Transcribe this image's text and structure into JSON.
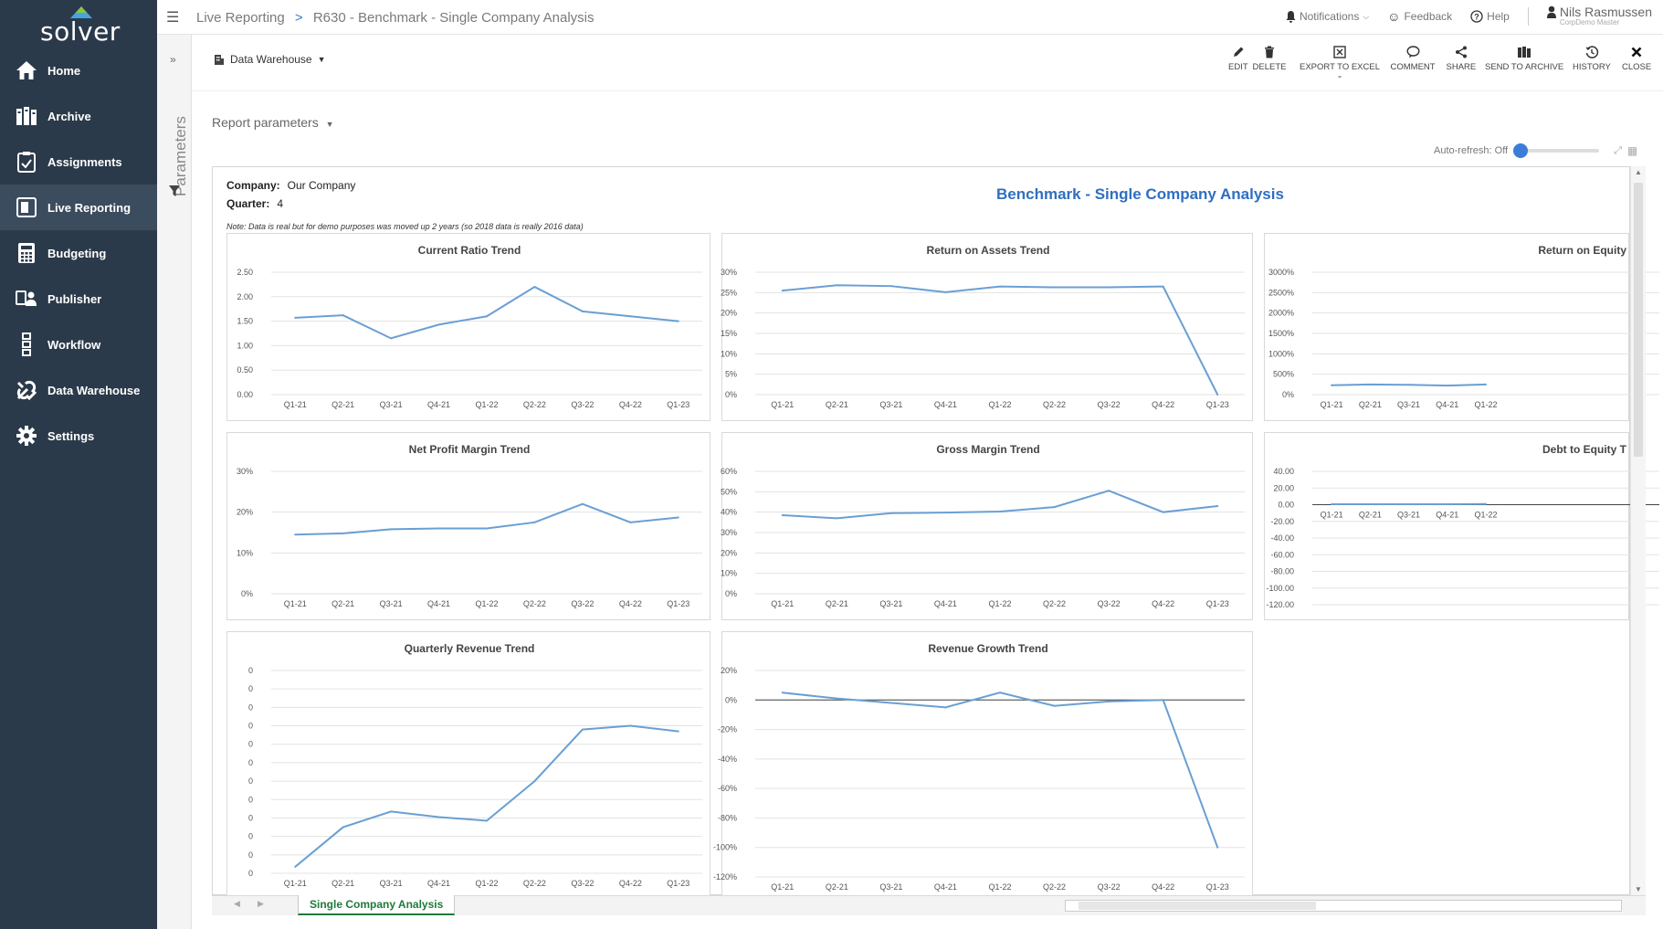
{
  "app": {
    "logo_text": "solver"
  },
  "sidebar": {
    "items": [
      {
        "label": "Home",
        "icon": "home-icon"
      },
      {
        "label": "Archive",
        "icon": "archive-icon"
      },
      {
        "label": "Assignments",
        "icon": "assignments-icon"
      },
      {
        "label": "Live Reporting",
        "icon": "live-reporting-icon",
        "active": true
      },
      {
        "label": "Budgeting",
        "icon": "calculator-icon"
      },
      {
        "label": "Publisher",
        "icon": "publisher-icon"
      },
      {
        "label": "Workflow",
        "icon": "workflow-icon"
      },
      {
        "label": "Data Warehouse",
        "icon": "tools-icon"
      },
      {
        "label": "Settings",
        "icon": "gear-icon"
      }
    ]
  },
  "header": {
    "breadcrumb_root": "Live Reporting",
    "breadcrumb_sep": ">",
    "breadcrumb_page": "R630 - Benchmark - Single Company Analysis",
    "notifications": "Notifications",
    "feedback": "Feedback",
    "help": "Help",
    "user_name": "Nils Rasmussen",
    "user_sub": "CorpDemo Master"
  },
  "params_panel": {
    "label": "Parameters"
  },
  "toolbar": {
    "source": "Data Warehouse",
    "buttons": [
      {
        "label": "EDIT",
        "icon": "pencil-icon"
      },
      {
        "label": "DELETE",
        "icon": "trash-icon"
      },
      {
        "label": "EXPORT TO EXCEL",
        "icon": "excel-icon"
      },
      {
        "label": "COMMENT",
        "icon": "comment-icon"
      },
      {
        "label": "SHARE",
        "icon": "share-icon"
      },
      {
        "label": "SEND TO ARCHIVE",
        "icon": "archive-send-icon"
      },
      {
        "label": "HISTORY",
        "icon": "history-icon"
      },
      {
        "label": "CLOSE",
        "icon": "close-icon"
      }
    ]
  },
  "report_params": {
    "label": "Report parameters"
  },
  "autorefresh": {
    "label": "Auto-refresh: Off",
    "state": "off"
  },
  "report": {
    "company_label": "Company:",
    "company_value": "Our Company",
    "quarter_label": "Quarter:",
    "quarter_value": "4",
    "note": "Note: Data is real but for demo purposes was moved up 2 years (so 2018 data is really 2016 data)",
    "title": "Benchmark - Single Company Analysis"
  },
  "chart_data": [
    {
      "type": "line",
      "title": "Current Ratio Trend",
      "categories": [
        "Q1-21",
        "Q2-21",
        "Q3-21",
        "Q4-21",
        "Q1-22",
        "Q2-22",
        "Q3-22",
        "Q4-22",
        "Q1-23"
      ],
      "values": [
        1.57,
        1.62,
        1.15,
        1.43,
        1.6,
        2.2,
        1.7,
        1.6,
        1.5
      ],
      "ylim": [
        0,
        2.5
      ],
      "yticks": [
        "0.00",
        "0.50",
        "1.00",
        "1.50",
        "2.00",
        "2.50"
      ],
      "color": "#6a9fd4"
    },
    {
      "type": "line",
      "title": "Return on Assets Trend",
      "categories": [
        "Q1-21",
        "Q2-21",
        "Q3-21",
        "Q4-21",
        "Q1-22",
        "Q2-22",
        "Q3-22",
        "Q4-22",
        "Q1-23"
      ],
      "values": [
        25.5,
        26.8,
        26.6,
        25.1,
        26.5,
        26.3,
        26.3,
        26.5,
        0
      ],
      "ylim": [
        0,
        30
      ],
      "yticks": [
        "0%",
        "5%",
        "10%",
        "15%",
        "20%",
        "25%",
        "30%"
      ],
      "color": "#6a9fd4"
    },
    {
      "type": "line",
      "title": "Return on Equity",
      "categories": [
        "Q1-21",
        "Q2-21",
        "Q3-21",
        "Q4-21",
        "Q1-22"
      ],
      "values": [
        230,
        250,
        240,
        220,
        250
      ],
      "ylim": [
        0,
        3000
      ],
      "yticks": [
        "0%",
        "500%",
        "1000%",
        "1500%",
        "2000%",
        "2500%",
        "3000%"
      ],
      "color": "#6a9fd4"
    },
    {
      "type": "line",
      "title": "Net Profit Margin Trend",
      "categories": [
        "Q1-21",
        "Q2-21",
        "Q3-21",
        "Q4-21",
        "Q1-22",
        "Q2-22",
        "Q3-22",
        "Q4-22",
        "Q1-23"
      ],
      "values": [
        14.5,
        14.8,
        15.8,
        16.0,
        16.0,
        17.5,
        22.0,
        17.5,
        18.7
      ],
      "ylim": [
        0,
        30
      ],
      "yticks": [
        "0%",
        "10%",
        "20%",
        "30%"
      ],
      "color": "#6a9fd4"
    },
    {
      "type": "line",
      "title": "Gross Margin Trend",
      "categories": [
        "Q1-21",
        "Q2-21",
        "Q3-21",
        "Q4-21",
        "Q1-22",
        "Q2-22",
        "Q3-22",
        "Q4-22",
        "Q1-23"
      ],
      "values": [
        38.5,
        37.0,
        39.5,
        39.8,
        40.3,
        42.5,
        50.5,
        40.0,
        43.0
      ],
      "ylim": [
        0,
        60
      ],
      "yticks": [
        "0%",
        "10%",
        "20%",
        "30%",
        "40%",
        "50%",
        "60%"
      ],
      "color": "#6a9fd4"
    },
    {
      "type": "line",
      "title": "Debt to Equity T",
      "categories": [
        "Q1-21",
        "Q2-21",
        "Q3-21",
        "Q4-21",
        "Q1-22"
      ],
      "values": [
        0.5,
        0.5,
        0.5,
        0.5,
        0.8
      ],
      "ylim": [
        -120,
        40
      ],
      "yticks": [
        "-120.00",
        "-100.00",
        "-80.00",
        "-60.00",
        "-40.00",
        "-20.00",
        "0.00",
        "20.00",
        "40.00"
      ],
      "color": "#6a9fd4"
    },
    {
      "type": "line",
      "title": "Quarterly Revenue Trend",
      "categories": [
        "Q1-21",
        "Q2-21",
        "Q3-21",
        "Q4-21",
        "Q1-22",
        "Q2-22",
        "Q3-22",
        "Q4-22",
        "Q1-23"
      ],
      "values": [
        0.35,
        2.5,
        3.35,
        3.05,
        2.85,
        5.0,
        7.8,
        8.0,
        7.7
      ],
      "ylim": [
        0,
        11
      ],
      "yticks": [
        "0",
        "0",
        "0",
        "0",
        "0",
        "0",
        "0",
        "0",
        "0",
        "0",
        "0",
        "0"
      ],
      "color": "#6a9fd4"
    },
    {
      "type": "line",
      "title": "Revenue Growth Trend",
      "categories": [
        "Q1-21",
        "Q2-21",
        "Q3-21",
        "Q4-21",
        "Q1-22",
        "Q2-22",
        "Q3-22",
        "Q4-22",
        "Q1-23"
      ],
      "values": [
        5,
        1,
        -2,
        -5,
        5,
        -4,
        -1,
        0,
        -100
      ],
      "ylim": [
        -120,
        20
      ],
      "yticks": [
        "-120%",
        "-100%",
        "-80%",
        "-60%",
        "-40%",
        "-20%",
        "0%",
        "20%"
      ],
      "zero_line": true,
      "color": "#6a9fd4"
    }
  ],
  "sheet_tab": {
    "label": "Single Company Analysis"
  }
}
